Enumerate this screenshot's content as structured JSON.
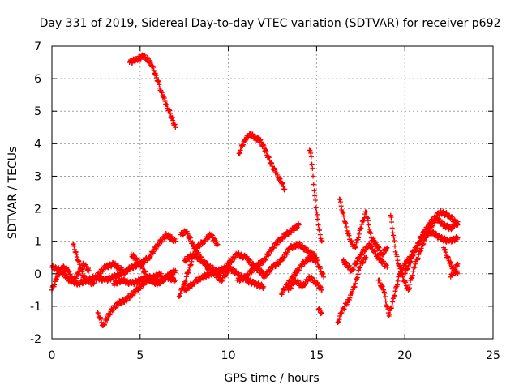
{
  "chart_data": {
    "type": "scatter",
    "title": "Day 331 of 2019, Sidereal Day-to-day VTEC variation (SDTVAR) for receiver p692",
    "xlabel": "GPS time / hours",
    "ylabel": "SDTVAR / TECUs",
    "xlim": [
      0,
      25
    ],
    "ylim": [
      -2,
      7
    ],
    "xticks": [
      "0",
      "5",
      "10",
      "15",
      "20",
      "25"
    ],
    "yticks": [
      "-2",
      "-1",
      "0",
      "1",
      "2",
      "3",
      "4",
      "5",
      "6",
      "7"
    ],
    "grid": true,
    "marker": "+",
    "color": "#ff0000",
    "series": [
      {
        "name": "s1",
        "x": [
          0.0,
          0.3,
          0.6,
          0.9,
          1.2,
          1.5,
          1.8,
          2.1
        ],
        "y": [
          -0.5,
          -0.1,
          0.2,
          0.1,
          -0.2,
          0.0,
          0.3,
          0.1
        ]
      },
      {
        "name": "s2",
        "x": [
          0.0,
          0.5,
          1.0,
          1.5,
          2.0,
          2.5,
          3.0,
          3.5,
          4.0
        ],
        "y": [
          0.2,
          0.1,
          -0.2,
          -0.3,
          -0.2,
          -0.1,
          0.2,
          0.3,
          0.1
        ]
      },
      {
        "name": "s3",
        "x": [
          1.2,
          1.4,
          1.6,
          1.8,
          2.0,
          2.3,
          2.6
        ],
        "y": [
          0.9,
          0.6,
          0.2,
          -0.1,
          -0.2,
          -0.3,
          -0.1
        ]
      },
      {
        "name": "s4",
        "x": [
          2.6,
          2.9,
          3.1,
          3.4,
          3.8,
          4.2,
          4.6,
          5.0,
          5.4,
          5.8,
          6.2
        ],
        "y": [
          -1.2,
          -1.6,
          -1.4,
          -1.1,
          -0.9,
          -0.8,
          -0.6,
          -0.4,
          -0.2,
          -0.1,
          0.0
        ]
      },
      {
        "name": "s5",
        "x": [
          2.5,
          3.0,
          3.5,
          4.0,
          4.5,
          5.0,
          5.5,
          6.0,
          6.5,
          7.0
        ],
        "y": [
          -0.1,
          -0.2,
          -0.1,
          0.0,
          0.2,
          0.3,
          0.5,
          0.9,
          1.2,
          1.0
        ]
      },
      {
        "name": "s6",
        "x": [
          3.5,
          4.0,
          4.5,
          5.0,
          5.5,
          6.0,
          6.5,
          7.0
        ],
        "y": [
          -0.3,
          -0.2,
          -0.3,
          -0.2,
          -0.1,
          -0.3,
          -0.1,
          -0.2
        ]
      },
      {
        "name": "s7",
        "x": [
          4.5,
          5.0,
          5.5,
          6.0,
          6.5,
          7.0
        ],
        "y": [
          0.6,
          0.3,
          -0.2,
          -0.3,
          -0.1,
          0.1
        ]
      },
      {
        "name": "s8",
        "x": [
          4.4,
          4.8,
          5.2,
          5.6,
          5.9,
          6.2,
          6.5,
          6.8,
          7.0
        ],
        "y": [
          6.5,
          6.6,
          6.7,
          6.5,
          6.1,
          5.6,
          5.2,
          4.8,
          4.5
        ]
      },
      {
        "name": "s9",
        "x": [
          7.2,
          7.5,
          7.8,
          8.2,
          8.6,
          9.0,
          9.4
        ],
        "y": [
          -0.7,
          -0.3,
          0.2,
          0.8,
          1.0,
          1.2,
          0.9
        ]
      },
      {
        "name": "s10",
        "x": [
          7.3,
          7.6,
          8.0,
          8.4,
          8.8,
          9.2,
          9.6,
          10.0
        ],
        "y": [
          1.2,
          1.3,
          0.9,
          0.5,
          0.2,
          0.0,
          -0.2,
          0.1
        ]
      },
      {
        "name": "s11",
        "x": [
          7.5,
          8.0,
          8.5,
          9.0,
          9.5,
          10.0,
          10.5,
          11.0,
          11.5,
          12.0
        ],
        "y": [
          0.4,
          0.6,
          0.4,
          0.2,
          0.0,
          0.3,
          0.6,
          0.5,
          0.2,
          0.0
        ]
      },
      {
        "name": "s12",
        "x": [
          7.5,
          8.0,
          8.5,
          9.0,
          9.5,
          10.0,
          10.5,
          11.0,
          11.5,
          12.0
        ],
        "y": [
          -0.5,
          -0.3,
          -0.1,
          0.0,
          0.1,
          0.2,
          0.0,
          -0.2,
          -0.3,
          -0.4
        ]
      },
      {
        "name": "s13",
        "x": [
          10.5,
          11.0,
          11.5,
          12.0,
          12.5,
          13.0,
          13.5,
          14.0
        ],
        "y": [
          -0.2,
          -0.1,
          0.2,
          0.4,
          0.8,
          1.1,
          1.3,
          1.5
        ]
      },
      {
        "name": "s14",
        "x": [
          10.6,
          10.9,
          11.2,
          11.5,
          11.8,
          12.1,
          12.4,
          12.7,
          13.0,
          13.2
        ],
        "y": [
          3.7,
          4.1,
          4.3,
          4.2,
          4.1,
          3.8,
          3.4,
          3.1,
          2.8,
          2.6
        ]
      },
      {
        "name": "s15",
        "x": [
          12.0,
          12.5,
          13.0,
          13.5,
          14.0,
          14.5,
          15.0
        ],
        "y": [
          -0.1,
          0.2,
          0.4,
          0.8,
          0.9,
          0.7,
          0.5
        ]
      },
      {
        "name": "s16",
        "x": [
          13.0,
          13.4,
          13.8,
          14.2,
          14.6,
          15.0,
          15.4
        ],
        "y": [
          -0.6,
          -0.3,
          0.0,
          0.3,
          0.5,
          0.4,
          -0.1
        ]
      },
      {
        "name": "s17",
        "x": [
          13.4,
          13.8,
          14.2,
          14.6,
          15.0,
          15.3
        ],
        "y": [
          -0.5,
          -0.2,
          -0.4,
          -0.1,
          -0.3,
          -0.5
        ]
      },
      {
        "name": "s18",
        "x": [
          14.6,
          14.7,
          14.8,
          14.9,
          15.0,
          15.1,
          15.2,
          15.3
        ],
        "y": [
          3.8,
          3.6,
          3.0,
          2.4,
          1.9,
          1.5,
          1.2,
          1.0
        ]
      },
      {
        "name": "s19",
        "x": [
          15.1,
          15.3
        ],
        "y": [
          -1.1,
          -1.2
        ]
      },
      {
        "name": "s20",
        "x": [
          16.2,
          16.4,
          16.6,
          16.8,
          17.0,
          17.2,
          17.5,
          17.8
        ],
        "y": [
          -1.5,
          -1.2,
          -1.0,
          -0.8,
          -0.6,
          -0.3,
          0.3,
          0.5
        ]
      },
      {
        "name": "s21",
        "x": [
          16.3,
          16.6,
          16.9,
          17.2,
          17.5,
          17.8,
          18.1,
          18.4,
          18.7,
          19.0
        ],
        "y": [
          2.3,
          1.6,
          1.0,
          0.8,
          1.4,
          1.9,
          1.1,
          0.9,
          0.6,
          0.8
        ]
      },
      {
        "name": "s22",
        "x": [
          16.5,
          17.0,
          17.5,
          18.0,
          18.5,
          19.0
        ],
        "y": [
          0.4,
          0.1,
          0.6,
          0.9,
          0.5,
          0.2
        ]
      },
      {
        "name": "s23",
        "x": [
          18.5,
          18.8,
          19.1,
          19.4,
          19.7,
          20.0,
          20.3,
          20.6,
          21.0,
          21.5
        ],
        "y": [
          -0.2,
          -0.5,
          -1.3,
          -0.7,
          0.0,
          0.3,
          0.5,
          0.8,
          1.1,
          1.3
        ]
      },
      {
        "name": "s24",
        "x": [
          19.2,
          19.5,
          19.8,
          20.2,
          20.6,
          21.0,
          21.4,
          21.8,
          22.2,
          22.6,
          23.0
        ],
        "y": [
          1.8,
          0.6,
          0.0,
          -0.5,
          0.3,
          0.9,
          1.4,
          1.7,
          1.5,
          1.4,
          1.6
        ]
      },
      {
        "name": "s25",
        "x": [
          20.0,
          20.5,
          21.0,
          21.5,
          22.0,
          22.5,
          23.0
        ],
        "y": [
          0.0,
          0.6,
          1.2,
          1.6,
          1.9,
          1.8,
          1.5
        ]
      },
      {
        "name": "s26",
        "x": [
          21.5,
          22.0,
          22.5,
          23.0
        ],
        "y": [
          1.3,
          1.1,
          1.0,
          1.1
        ]
      },
      {
        "name": "s27",
        "x": [
          22.2,
          22.5,
          22.8,
          23.0
        ],
        "y": [
          0.8,
          0.4,
          0.1,
          0.3
        ]
      },
      {
        "name": "s28",
        "x": [
          22.6,
          22.8,
          23.0
        ],
        "y": [
          -0.1,
          0.1,
          0.0
        ]
      }
    ]
  }
}
